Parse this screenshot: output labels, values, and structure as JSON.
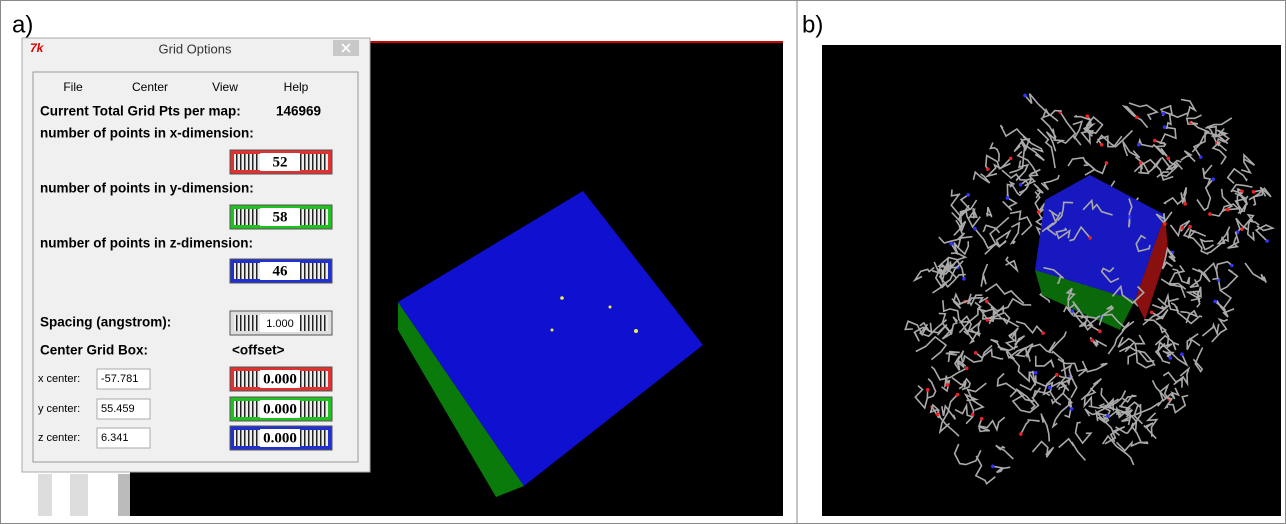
{
  "panels": {
    "a": "a)",
    "b": "b)"
  },
  "window": {
    "title": "Grid Options",
    "menu": [
      "File",
      "Center",
      "View",
      "Help"
    ]
  },
  "total": {
    "label": "Current Total Grid Pts per map:",
    "value": "146969"
  },
  "dimensions": [
    {
      "label": "number of points in x-dimension:",
      "value": "52"
    },
    {
      "label": "number of points in y-dimension:",
      "value": "58"
    },
    {
      "label": "number of points in z-dimension:",
      "value": "46"
    }
  ],
  "spacing": {
    "label": "Spacing (angstrom):",
    "value": "1.000"
  },
  "center": {
    "label": "Center Grid Box:",
    "mode": "<offset>",
    "axes": [
      {
        "label": "x center:",
        "value": "-57.781",
        "offset": "0.000"
      },
      {
        "label": "y center:",
        "value": "55.459",
        "offset": "0.000"
      },
      {
        "label": "z center:",
        "value": "6.341",
        "offset": "0.000"
      }
    ]
  }
}
